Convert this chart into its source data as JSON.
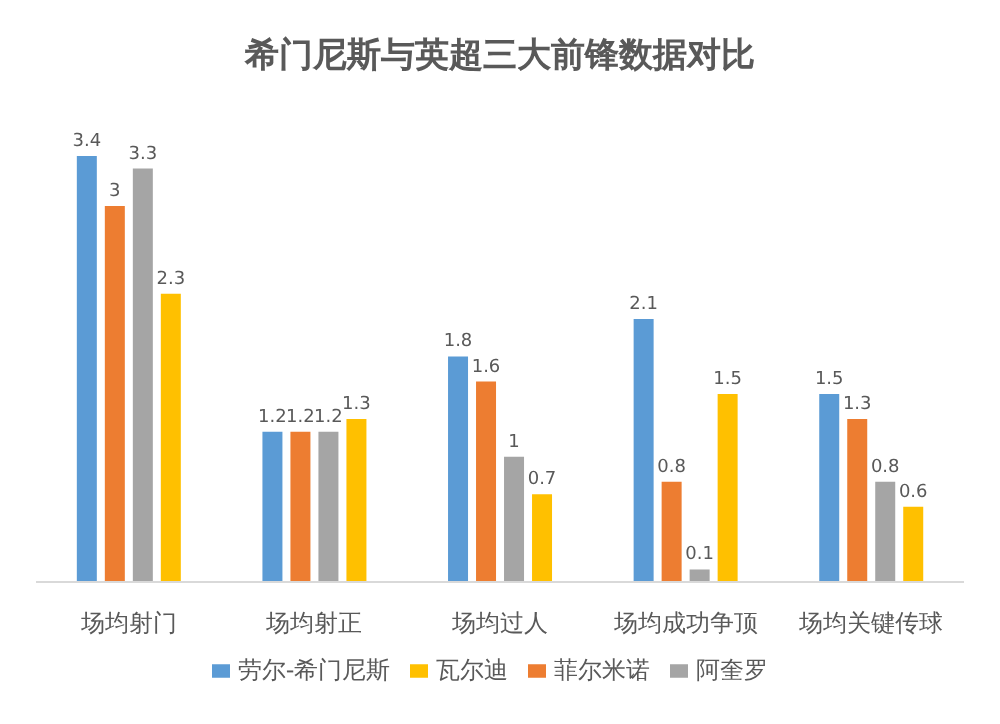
{
  "chart_data": {
    "type": "bar",
    "title": "希门尼斯与英超三大前锋数据对比",
    "categories": [
      "场均射门",
      "场均射正",
      "场均过人",
      "场均成功争顶",
      "场均关键传球"
    ],
    "series": [
      {
        "name": "劳尔-希门尼斯",
        "color": "#5b9bd5",
        "values": [
          3.4,
          1.2,
          1.8,
          2.1,
          1.5
        ]
      },
      {
        "name": "菲尔米诺",
        "color": "#ed7d31",
        "values": [
          3,
          1.2,
          1.6,
          0.8,
          1.3
        ]
      },
      {
        "name": "阿奎罗",
        "color": "#a5a5a5",
        "values": [
          3.3,
          1.2,
          1,
          0.1,
          0.8
        ]
      },
      {
        "name": "瓦尔迪",
        "color": "#ffc000",
        "values": [
          2.3,
          1.3,
          0.7,
          1.5,
          0.6
        ]
      }
    ],
    "data_labels": true,
    "legend": "bottom",
    "grid": false
  }
}
